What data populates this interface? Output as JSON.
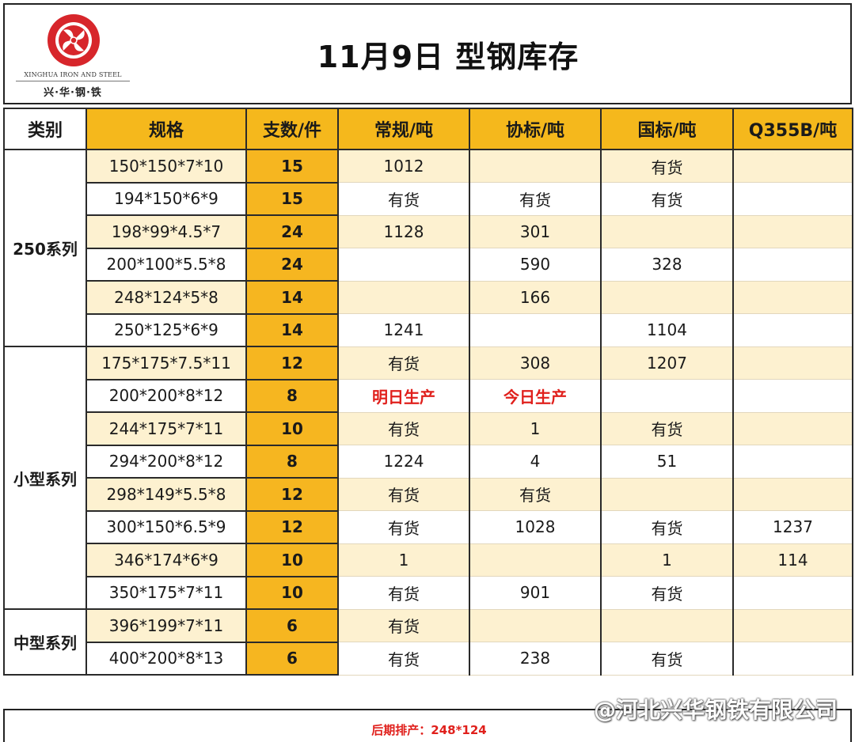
{
  "logo": {
    "en": "XINGHUA IRON AND STEEL",
    "cn": "兴·华·钢·铁",
    "color": "#d7262b"
  },
  "title": "11月9日  型钢库存",
  "headers": [
    "类别",
    "规格",
    "支数/件",
    "常规/吨",
    "协标/吨",
    "国标/吨",
    "Q355B/吨"
  ],
  "groups": [
    {
      "category": "250系列",
      "rows": [
        {
          "spec": "150*150*7*10",
          "qty": "15",
          "regular": "1012",
          "assoc": "",
          "national": "有货",
          "q355b": ""
        },
        {
          "spec": "194*150*6*9",
          "qty": "15",
          "regular": "有货",
          "assoc": "有货",
          "national": "有货",
          "q355b": ""
        },
        {
          "spec": "198*99*4.5*7",
          "qty": "24",
          "regular": "1128",
          "assoc": "301",
          "national": "",
          "q355b": ""
        },
        {
          "spec": "200*100*5.5*8",
          "qty": "24",
          "regular": "",
          "assoc": "590",
          "national": "328",
          "q355b": ""
        },
        {
          "spec": "248*124*5*8",
          "qty": "14",
          "regular": "",
          "assoc": "166",
          "national": "",
          "q355b": ""
        },
        {
          "spec": "250*125*6*9",
          "qty": "14",
          "regular": "1241",
          "assoc": "",
          "national": "1104",
          "q355b": ""
        }
      ]
    },
    {
      "category": "小型系列",
      "rows": [
        {
          "spec": "175*175*7.5*11",
          "qty": "12",
          "regular": "有货",
          "assoc": "308",
          "national": "1207",
          "q355b": ""
        },
        {
          "spec": "200*200*8*12",
          "qty": "8",
          "regular": "明日生产",
          "assoc": "今日生产",
          "national": "",
          "q355b": "",
          "highlight": [
            "regular",
            "assoc"
          ]
        },
        {
          "spec": "244*175*7*11",
          "qty": "10",
          "regular": "有货",
          "assoc": "1",
          "national": "有货",
          "q355b": ""
        },
        {
          "spec": "294*200*8*12",
          "qty": "8",
          "regular": "1224",
          "assoc": "4",
          "national": "51",
          "q355b": ""
        },
        {
          "spec": "298*149*5.5*8",
          "qty": "12",
          "regular": "有货",
          "assoc": "有货",
          "national": "",
          "q355b": ""
        },
        {
          "spec": "300*150*6.5*9",
          "qty": "12",
          "regular": "有货",
          "assoc": "1028",
          "national": "有货",
          "q355b": "1237"
        },
        {
          "spec": "346*174*6*9",
          "qty": "10",
          "regular": "1",
          "assoc": "",
          "national": "1",
          "q355b": "114"
        },
        {
          "spec": "350*175*7*11",
          "qty": "10",
          "regular": "有货",
          "assoc": "901",
          "national": "有货",
          "q355b": ""
        }
      ]
    },
    {
      "category": "中型系列",
      "rows": [
        {
          "spec": "396*199*7*11",
          "qty": "6",
          "regular": "有货",
          "assoc": "",
          "national": "",
          "q355b": ""
        },
        {
          "spec": "400*200*8*13",
          "qty": "6",
          "regular": "有货",
          "assoc": "238",
          "national": "有货",
          "q355b": ""
        }
      ]
    }
  ],
  "footer_note": "后期排产：248*124",
  "watermark": "@河北兴华钢铁有限公司",
  "colors": {
    "accent": "#f5b81c",
    "stripe": "#fdf1d0",
    "alert": "#e0201c"
  }
}
